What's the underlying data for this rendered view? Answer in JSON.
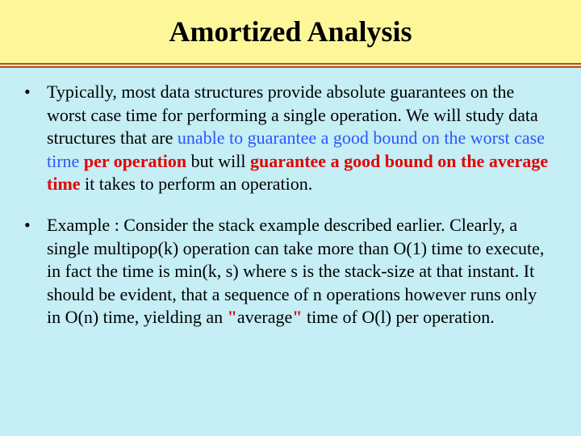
{
  "title": "Amortized Analysis",
  "colors": {
    "title_bg": "#fdf79a",
    "body_bg": "#c5eef5",
    "rule": "#c94b00",
    "blue_text": "#2957ff",
    "red_text": "#e40000",
    "black_text": "#000000"
  },
  "typography": {
    "title_fontsize": 36,
    "body_fontsize": 22,
    "font_family": "Times New Roman"
  },
  "bullets": {
    "b1": {
      "run1": "Typically, most data structures provide absolute guarantees on the worst case time for performing a single operation. We will study data structures that are ",
      "run2_blue": "unable to guarantee a good bound on the worst case tirne ",
      "run3_redbold": "per operation ",
      "run4": "but will ",
      "run5_redbold": "guarantee a good bound on the average time ",
      "run6": "it takes to perform an operation."
    },
    "b2": {
      "run1": "Example : Consider the stack example described earlier. Clearly, a single multipop(k) operation can take more than O(1) time to execute, in fact the time is min(k, s) where s is the stack-size at that instant. It should be evident, that a sequence of n operations however runs only in O(n) time, yielding an ",
      "q1": "\"",
      "run2": "average",
      "q2": "\" ",
      "run3": "time of O(l) per operation."
    }
  }
}
